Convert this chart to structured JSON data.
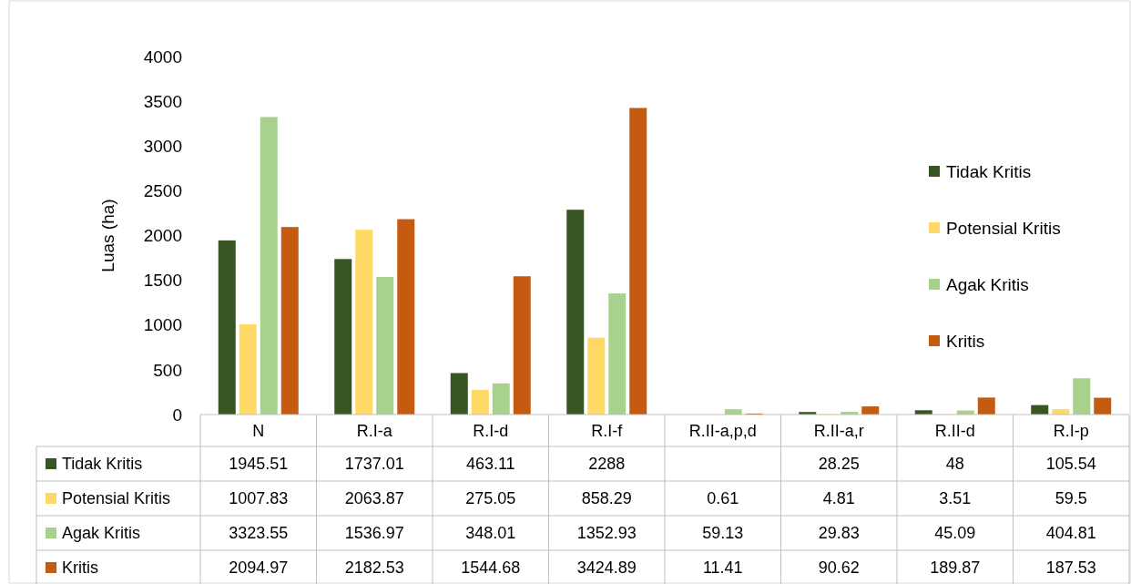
{
  "chart_data": {
    "type": "bar",
    "ylabel": "Luas (ha)",
    "categories": [
      "N",
      "R.I-a",
      "R.I-d",
      "R.I-f",
      "R.II-a,p,d",
      "R.II-a,r",
      "R.II-d",
      "R.I-p"
    ],
    "series": [
      {
        "name": "Tidak Kritis",
        "color": "#375623",
        "values": [
          1945.51,
          1737.01,
          463.11,
          2288,
          null,
          28.25,
          48,
          105.54
        ]
      },
      {
        "name": "Potensial Kritis",
        "color": "#ffd966",
        "values": [
          1007.83,
          2063.87,
          275.05,
          858.29,
          0.61,
          4.81,
          3.51,
          59.5
        ]
      },
      {
        "name": "Agak Kritis",
        "color": "#a9d18e",
        "values": [
          3323.55,
          1536.97,
          348.01,
          1352.93,
          59.13,
          29.83,
          45.09,
          404.81
        ]
      },
      {
        "name": "Kritis",
        "color": "#c55a11",
        "values": [
          2094.97,
          2182.53,
          1544.68,
          3424.89,
          11.41,
          90.62,
          189.87,
          187.53
        ]
      }
    ],
    "ylim": [
      0,
      4000
    ],
    "yticks": [
      0,
      500,
      1000,
      1500,
      2000,
      2500,
      3000,
      3500,
      4000
    ],
    "legend": "right",
    "data_labels": true
  }
}
